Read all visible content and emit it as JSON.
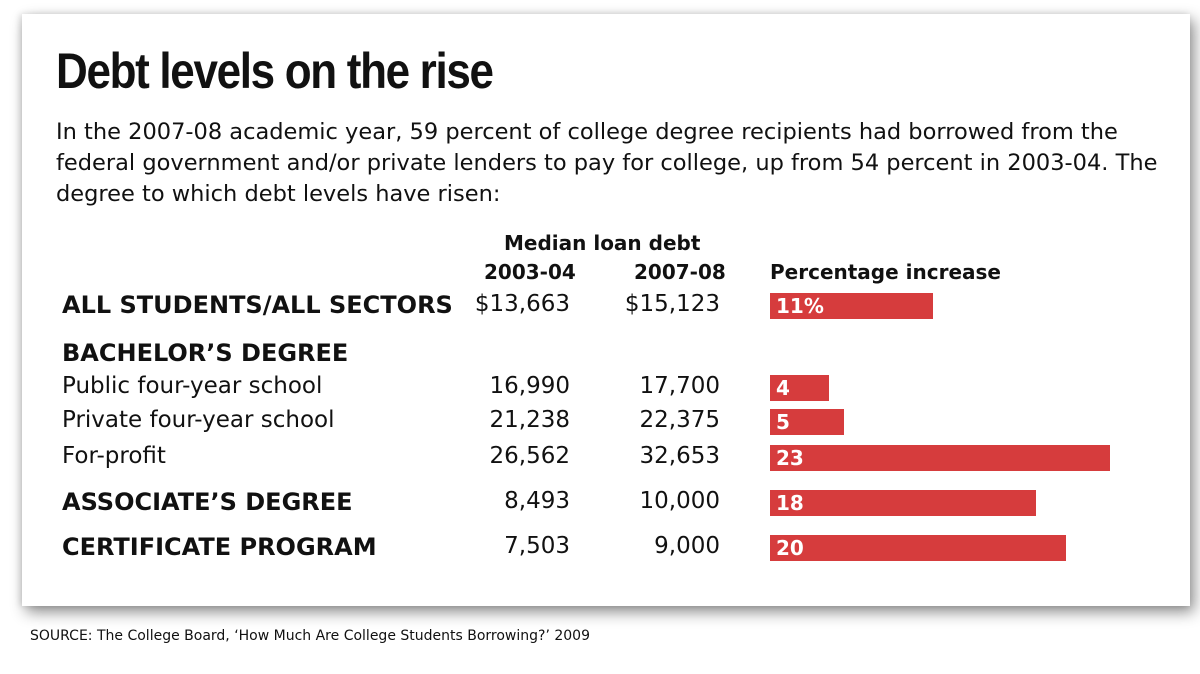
{
  "title": "Debt levels on the rise",
  "intro": "In the 2007-08 academic year, 59 percent of college degree recipients had borrowed from the federal government and/or private lenders to pay for college, up from 54 percent in 2003-04. The degree to which debt levels have risen:",
  "headers": {
    "group": "Median loan debt",
    "col1": "2003-04",
    "col2": "2007-08",
    "col3": "Percentage increase"
  },
  "bar_color": "#d63c3d",
  "chart_data": {
    "type": "table",
    "columns": [
      "2003-04",
      "2007-08",
      "Percentage increase"
    ],
    "rows": [
      {
        "label": "ALL STUDENTS/ALL SECTORS",
        "bold": true,
        "v2003": "$13,663",
        "v2008": "$15,123",
        "increase": 11,
        "increase_label": "11%"
      },
      {
        "label": "BACHELOR’S DEGREE",
        "bold": true,
        "v2003": "",
        "v2008": "",
        "increase": null,
        "increase_label": ""
      },
      {
        "label": "Public four-year school",
        "bold": false,
        "v2003": "16,990",
        "v2008": "17,700",
        "increase": 4,
        "increase_label": "4"
      },
      {
        "label": "Private four-year school",
        "bold": false,
        "v2003": "21,238",
        "v2008": "22,375",
        "increase": 5,
        "increase_label": "5"
      },
      {
        "label": "For-profit",
        "bold": false,
        "v2003": "26,562",
        "v2008": "32,653",
        "increase": 23,
        "increase_label": "23"
      },
      {
        "label": "ASSOCIATE’S DEGREE",
        "bold": true,
        "v2003": "8,493",
        "v2008": "10,000",
        "increase": 18,
        "increase_label": "18"
      },
      {
        "label": "CERTIFICATE PROGRAM",
        "bold": true,
        "v2003": "7,503",
        "v2008": "9,000",
        "increase": 20,
        "increase_label": "20"
      }
    ]
  },
  "source": "SOURCE: The College Board, ‘How Much Are College Students Borrowing?’ 2009"
}
